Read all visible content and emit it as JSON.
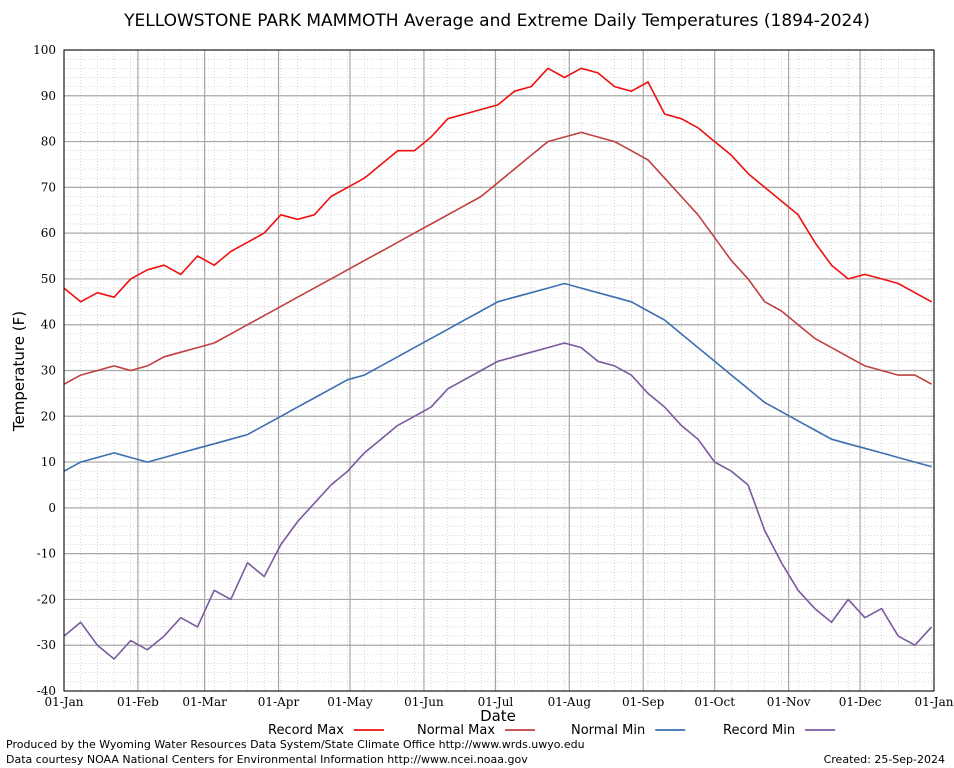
{
  "chart_data": {
    "type": "line",
    "title": "YELLOWSTONE PARK MAMMOTH Average and Extreme Daily Temperatures (1894-2024)",
    "xlabel": "Date",
    "ylabel": "Temperature (F)",
    "ylim": [
      -40,
      100
    ],
    "yticks": [
      -40,
      -30,
      -20,
      -10,
      0,
      10,
      20,
      30,
      40,
      50,
      60,
      70,
      80,
      90,
      100
    ],
    "xlim": [
      "01-Jan",
      "01-Jan"
    ],
    "xticks": [
      "01-Jan",
      "01-Feb",
      "01-Mar",
      "01-Apr",
      "01-May",
      "01-Jun",
      "01-Jul",
      "01-Aug",
      "01-Sep",
      "01-Oct",
      "01-Nov",
      "01-Dec",
      "01-Jan"
    ],
    "grid": true,
    "legend_position": "bottom",
    "x_dates": [
      "01-Jan",
      "08-Jan",
      "15-Jan",
      "22-Jan",
      "29-Jan",
      "05-Feb",
      "12-Feb",
      "19-Feb",
      "26-Feb",
      "05-Mar",
      "12-Mar",
      "19-Mar",
      "26-Mar",
      "02-Apr",
      "09-Apr",
      "16-Apr",
      "23-Apr",
      "30-Apr",
      "07-May",
      "14-May",
      "21-May",
      "28-May",
      "04-Jun",
      "11-Jun",
      "18-Jun",
      "25-Jun",
      "02-Jul",
      "09-Jul",
      "16-Jul",
      "23-Jul",
      "30-Jul",
      "06-Aug",
      "13-Aug",
      "20-Aug",
      "27-Aug",
      "03-Sep",
      "10-Sep",
      "17-Sep",
      "24-Sep",
      "01-Oct",
      "08-Oct",
      "15-Oct",
      "22-Oct",
      "29-Oct",
      "05-Nov",
      "12-Nov",
      "19-Nov",
      "26-Nov",
      "03-Dec",
      "10-Dec",
      "17-Dec",
      "24-Dec",
      "31-Dec"
    ],
    "series": [
      {
        "name": "Record Max",
        "color": "#ee1111",
        "values": [
          48,
          45,
          47,
          46,
          50,
          52,
          53,
          51,
          55,
          53,
          56,
          58,
          60,
          64,
          63,
          64,
          68,
          70,
          72,
          75,
          78,
          78,
          81,
          85,
          86,
          87,
          88,
          91,
          92,
          96,
          94,
          96,
          95,
          92,
          91,
          93,
          86,
          85,
          83,
          80,
          77,
          73,
          70,
          67,
          64,
          58,
          53,
          50,
          51,
          50,
          49,
          47,
          45
        ]
      },
      {
        "name": "Normal Max",
        "color": "#c04040",
        "values": [
          27,
          29,
          30,
          31,
          30,
          31,
          33,
          34,
          35,
          36,
          38,
          40,
          42,
          44,
          46,
          48,
          50,
          52,
          54,
          56,
          58,
          60,
          62,
          64,
          66,
          68,
          71,
          74,
          77,
          80,
          81,
          82,
          81,
          80,
          78,
          76,
          72,
          68,
          64,
          59,
          54,
          50,
          45,
          43,
          40,
          37,
          35,
          33,
          31,
          30,
          29,
          29,
          27
        ]
      },
      {
        "name": "Normal Min",
        "color": "#3a70b0",
        "values": [
          8,
          10,
          11,
          12,
          11,
          10,
          11,
          12,
          13,
          14,
          15,
          16,
          18,
          20,
          22,
          24,
          26,
          28,
          29,
          31,
          33,
          35,
          37,
          39,
          41,
          43,
          45,
          46,
          47,
          48,
          49,
          48,
          47,
          46,
          45,
          43,
          41,
          38,
          35,
          32,
          29,
          26,
          23,
          21,
          19,
          17,
          15,
          14,
          13,
          12,
          11,
          10,
          9
        ]
      },
      {
        "name": "Record Min",
        "color": "#7a5a9f",
        "values": [
          -28,
          -25,
          -30,
          -33,
          -29,
          -31,
          -28,
          -24,
          -26,
          -18,
          -20,
          -12,
          -15,
          -8,
          -3,
          1,
          5,
          8,
          12,
          15,
          18,
          20,
          22,
          26,
          28,
          30,
          32,
          33,
          34,
          35,
          36,
          35,
          32,
          31,
          29,
          25,
          22,
          18,
          15,
          10,
          8,
          5,
          -5,
          -12,
          -18,
          -22,
          -25,
          -20,
          -24,
          -22,
          -28,
          -30,
          -26
        ]
      }
    ]
  },
  "footer": {
    "left_line1": "Produced by the Wyoming Water Resources Data System/State Climate Office http://www.wrds.uwyo.edu",
    "left_line2": "Data courtesy NOAA National Centers for Environmental Information http://www.ncei.noaa.gov",
    "created": "Created:  25-Sep-2024"
  }
}
